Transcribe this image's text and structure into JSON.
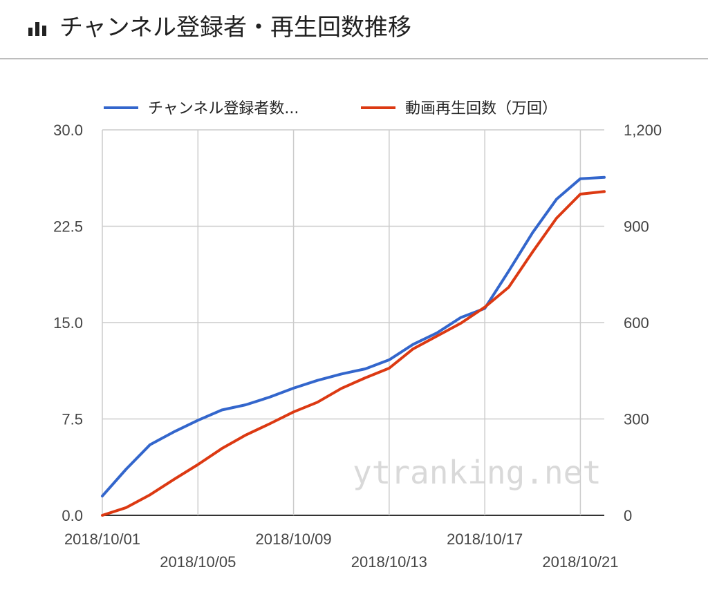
{
  "header": {
    "title": "チャンネル登録者・再生回数推移",
    "icon": "bar-chart-icon"
  },
  "watermark": "ytranking.net",
  "chart_data": {
    "type": "line",
    "title": "チャンネル登録者・再生回数推移",
    "x": [
      "2018/10/01",
      "2018/10/02",
      "2018/10/03",
      "2018/10/04",
      "2018/10/05",
      "2018/10/06",
      "2018/10/07",
      "2018/10/08",
      "2018/10/09",
      "2018/10/10",
      "2018/10/11",
      "2018/10/12",
      "2018/10/13",
      "2018/10/14",
      "2018/10/15",
      "2018/10/16",
      "2018/10/17",
      "2018/10/18",
      "2018/10/19",
      "2018/10/20",
      "2018/10/21",
      "2018/10/22"
    ],
    "x_tick_labels": [
      "2018/10/01",
      "2018/10/05",
      "2018/10/09",
      "2018/10/13",
      "2018/10/17",
      "2018/10/21"
    ],
    "y_left": {
      "ticks": [
        "0.0",
        "7.5",
        "15.0",
        "22.5",
        "30.0"
      ],
      "range": [
        0,
        30
      ]
    },
    "y_right": {
      "ticks": [
        "0",
        "300",
        "600",
        "900",
        "1,200"
      ],
      "range": [
        0,
        1200
      ]
    },
    "grid": true,
    "legend_position": "top",
    "series": [
      {
        "name": "チャンネル登録者数...",
        "axis": "left",
        "color": "#3366cc",
        "values": [
          1.5,
          3.6,
          5.5,
          6.5,
          7.4,
          8.2,
          8.6,
          9.2,
          9.9,
          10.5,
          11.0,
          11.4,
          12.1,
          13.3,
          14.2,
          15.4,
          16.1,
          19.0,
          22.0,
          24.6,
          26.2,
          26.3
        ]
      },
      {
        "name": "動画再生回数（万回）",
        "axis": "right",
        "color": "#dc3912",
        "values": [
          0,
          24,
          64,
          112,
          158,
          208,
          250,
          285,
          322,
          352,
          395,
          428,
          458,
          518,
          558,
          598,
          648,
          710,
          820,
          925,
          1000,
          1008
        ]
      }
    ]
  }
}
